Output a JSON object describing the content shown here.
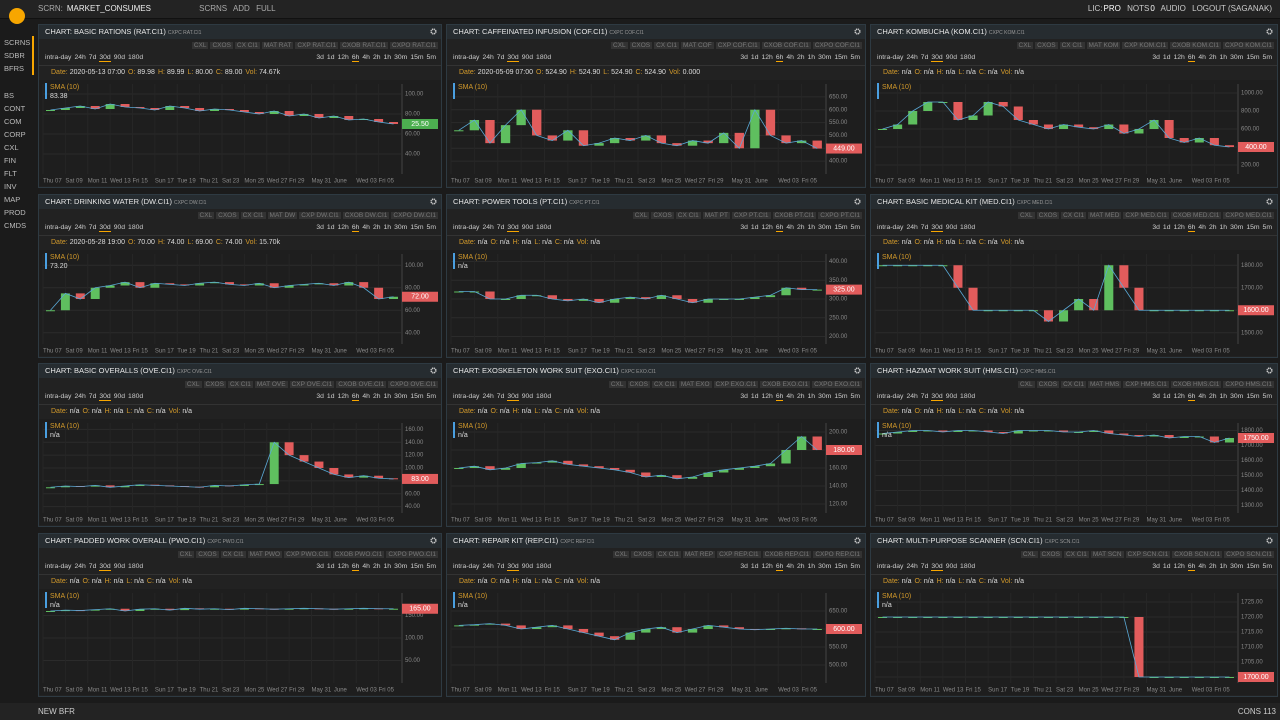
{
  "topbar": {
    "screen_label": "SCRN:",
    "screen_name": "MARKET_CONSUMES",
    "buttons": [
      "SCRNS",
      "ADD",
      "FULL"
    ],
    "lic_label": "LIC:",
    "lic": "PRO",
    "nots_label": "NOTS",
    "nots": "0",
    "audio": "AUDIO",
    "logout": "LOGOUT (SAGANAK)"
  },
  "sidebar": {
    "top": [
      "SCRNS",
      "SDBR",
      "BFRS"
    ],
    "items": [
      "BS",
      "CONT",
      "COM",
      "CORP",
      "CXL",
      "FIN",
      "FLT",
      "INV",
      "MAP",
      "PROD",
      "CMDS"
    ]
  },
  "bottombar": {
    "left": "NEW BFR",
    "right": "CONS 113"
  },
  "ranges_left": [
    "intra-day",
    "24h",
    "7d",
    "30d",
    "90d",
    "180d"
  ],
  "ranges_right": [
    "3d",
    "1d",
    "12h",
    "6h",
    "4h",
    "2h",
    "1h",
    "30m",
    "15m",
    "5m"
  ],
  "info_labels": [
    "Date:",
    "O:",
    "H:",
    "L:",
    "C:",
    "Vol:"
  ],
  "sma_label": "SMA (10)",
  "xticks": [
    "Thu 07",
    "Sat 09",
    "Mon 11",
    "Wed 13",
    "Fri 15",
    "Sun 17",
    "Tue 19",
    "Thu 21",
    "Sat 23",
    "Mon 25",
    "Wed 27",
    "Fri 29",
    "May 31",
    "June",
    "Wed 03",
    "Fri 05"
  ],
  "candle_colors": {
    "up": "#5fbf5f",
    "down": "#e25c5c"
  },
  "panels": [
    {
      "title": "CHART: BASIC RATIONS (RAT.CI1)",
      "code": "CXPC RAT.CI1",
      "tabs": [
        "CXL",
        "CXOS",
        "CX CI1",
        "MAT RAT",
        "CXP RAT.CI1",
        "CXOB RAT.CI1",
        "CXPO RAT.CI1"
      ],
      "info": [
        "2020-05-13 07:00",
        "89.98",
        "89.99",
        "80.00",
        "89.00",
        "74.67k"
      ],
      "sma_value": "83.38",
      "price": "25.50",
      "price_color": "#4caf50",
      "ylim": [
        20,
        110
      ],
      "yticks": [
        {
          "value": 40,
          "label": "40.00"
        },
        {
          "value": 60,
          "label": "60.00"
        },
        {
          "value": 80,
          "label": "80.00"
        },
        {
          "value": 100,
          "label": "100.00"
        }
      ],
      "closes": [
        84,
        86,
        88,
        85,
        90,
        87,
        86,
        84,
        88,
        86,
        83,
        85,
        84,
        82,
        80,
        83,
        78,
        80,
        76,
        78,
        74,
        75,
        72,
        70
      ]
    },
    {
      "title": "CHART: CAFFEINATED INFUSION (COF.CI1)",
      "code": "CXPC COF.CI1",
      "tabs": [
        "CXL",
        "CXOS",
        "CX CI1",
        "MAT COF",
        "CXP COF.CI1",
        "CXOB COF.CI1",
        "CXPO COF.CI1"
      ],
      "info": [
        "2020-05-09 07:00",
        "524.90",
        "524.90",
        "524.90",
        "524.90",
        "0.000"
      ],
      "price": "449.00",
      "price_color": "#e25c5c",
      "ylim": [
        350,
        700
      ],
      "yticks": [
        {
          "value": 400,
          "label": "400.00"
        },
        {
          "value": 450,
          "label": "450.00"
        },
        {
          "value": 500,
          "label": "500.00"
        },
        {
          "value": 550,
          "label": "550.00"
        },
        {
          "value": 600,
          "label": "600.00"
        },
        {
          "value": 650,
          "label": "650.00"
        }
      ],
      "closes": [
        520,
        560,
        470,
        540,
        600,
        500,
        480,
        520,
        460,
        470,
        490,
        480,
        500,
        470,
        460,
        480,
        470,
        510,
        450,
        600,
        500,
        470,
        480,
        449
      ]
    },
    {
      "title": "CHART: KOMBUCHA (KOM.CI1)",
      "code": "CXPC KOM.CI1",
      "tabs": [
        "CXL",
        "CXOS",
        "CX CI1",
        "MAT KOM",
        "CXP KOM.CI1",
        "CXOB KOM.CI1",
        "CXPO KOM.CI1"
      ],
      "info": [
        "n/a",
        "n/a",
        "n/a",
        "n/a",
        "n/a",
        "n/a"
      ],
      "price": "400.00",
      "price_color": "#e25c5c",
      "ylim": [
        100,
        1100
      ],
      "yticks": [
        {
          "value": 200,
          "label": "200.00"
        },
        {
          "value": 400,
          "label": "400.00"
        },
        {
          "value": 600,
          "label": "600.00"
        },
        {
          "value": 800,
          "label": "800.00"
        },
        {
          "value": 1000,
          "label": "1000.00"
        }
      ],
      "closes": [
        600,
        650,
        800,
        900,
        900,
        700,
        750,
        900,
        850,
        700,
        650,
        600,
        650,
        620,
        600,
        650,
        550,
        600,
        700,
        500,
        450,
        500,
        420,
        400
      ]
    },
    {
      "title": "CHART: DRINKING WATER (DW.CI1)",
      "code": "CXPC DW.CI1",
      "tabs": [
        "CXL",
        "CXOS",
        "CX CI1",
        "MAT DW",
        "CXP DW.CI1",
        "CXOB DW.CI1",
        "CXPO DW.CI1"
      ],
      "info": [
        "2020-05-28 19:00",
        "70.00",
        "74.00",
        "69.00",
        "74.00",
        "15.70k"
      ],
      "sma_value": "73.20",
      "price": "72.00",
      "price_color": "#e25c5c",
      "ylim": [
        30,
        110
      ],
      "yticks": [
        {
          "value": 40,
          "label": "40.00"
        },
        {
          "value": 60,
          "label": "60.00"
        },
        {
          "value": 80,
          "label": "80.00"
        },
        {
          "value": 100,
          "label": "100.00"
        }
      ],
      "closes": [
        60,
        75,
        70,
        80,
        82,
        85,
        80,
        84,
        83,
        82,
        84,
        85,
        83,
        82,
        84,
        80,
        82,
        83,
        84,
        82,
        85,
        80,
        70,
        72
      ]
    },
    {
      "title": "CHART: POWER TOOLS (PT.CI1)",
      "code": "CXPC PT.CI1",
      "tabs": [
        "CXL",
        "CXOS",
        "CX CI1",
        "MAT PT",
        "CXP PT.CI1",
        "CXOB PT.CI1",
        "CXPO PT.CI1"
      ],
      "info": [
        "n/a",
        "n/a",
        "n/a",
        "n/a",
        "n/a",
        "n/a"
      ],
      "sma_value": "n/a",
      "price": "325.00",
      "price_color": "#e25c5c",
      "ylim": [
        180,
        420
      ],
      "yticks": [
        {
          "value": 200,
          "label": "200.00"
        },
        {
          "value": 250,
          "label": "250.00"
        },
        {
          "value": 300,
          "label": "300.00"
        },
        {
          "value": 350,
          "label": "350.00"
        },
        {
          "value": 400,
          "label": "400.00"
        }
      ],
      "closes": [
        320,
        320,
        300,
        300,
        310,
        310,
        300,
        295,
        300,
        290,
        300,
        305,
        300,
        310,
        300,
        290,
        300,
        300,
        300,
        305,
        310,
        330,
        325,
        325
      ]
    },
    {
      "title": "CHART: BASIC MEDICAL KIT (MED.CI1)",
      "code": "CXPC MED.CI1",
      "tabs": [
        "CXL",
        "CXOS",
        "CX CI1",
        "MAT MED",
        "CXP MED.CI1",
        "CXOB MED.CI1",
        "CXPO MED.CI1"
      ],
      "info": [
        "n/a",
        "n/a",
        "n/a",
        "n/a",
        "n/a",
        "n/a"
      ],
      "price": "1600.00",
      "price_color": "#e25c5c",
      "ylim": [
        1450,
        1850
      ],
      "yticks": [
        {
          "value": 1500,
          "label": "1500.00"
        },
        {
          "value": 1600,
          "label": "1600.00"
        },
        {
          "value": 1700,
          "label": "1700.00"
        },
        {
          "value": 1800,
          "label": "1800.00"
        }
      ],
      "closes": [
        1800,
        1800,
        1800,
        1800,
        1800,
        1700,
        1600,
        1600,
        1600,
        1600,
        1600,
        1550,
        1600,
        1650,
        1600,
        1800,
        1700,
        1600,
        1600,
        1600,
        1600,
        1600,
        1600,
        1600
      ]
    },
    {
      "title": "CHART: BASIC OVERALLS (OVE.CI1)",
      "code": "CXPC OVE.CI1",
      "tabs": [
        "CXL",
        "CXOS",
        "CX CI1",
        "MAT OVE",
        "CXP OVE.CI1",
        "CXOB OVE.CI1",
        "CXPO OVE.CI1"
      ],
      "info": [
        "n/a",
        "n/a",
        "n/a",
        "n/a",
        "n/a",
        "n/a"
      ],
      "sma_value": "n/a",
      "price": "83.00",
      "price_color": "#e25c5c",
      "ylim": [
        30,
        170
      ],
      "yticks": [
        {
          "value": 40,
          "label": "40.00"
        },
        {
          "value": 60,
          "label": "60.00"
        },
        {
          "value": 80,
          "label": "80.00"
        },
        {
          "value": 100,
          "label": "100.00"
        },
        {
          "value": 120,
          "label": "120.00"
        },
        {
          "value": 140,
          "label": "140.00"
        },
        {
          "value": 160,
          "label": "160.00"
        }
      ],
      "closes": [
        70,
        72,
        71,
        73,
        70,
        72,
        74,
        73,
        72,
        71,
        70,
        73,
        72,
        74,
        75,
        140,
        120,
        110,
        100,
        90,
        85,
        88,
        84,
        83
      ]
    },
    {
      "title": "CHART: EXOSKELETON WORK SUIT (EXO.CI1)",
      "code": "CXPC EXO.CI1",
      "tabs": [
        "CXL",
        "CXOS",
        "CX CI1",
        "MAT EXO",
        "CXP EXO.CI1",
        "CXOB EXO.CI1",
        "CXPO EXO.CI1"
      ],
      "info": [
        "n/a",
        "n/a",
        "n/a",
        "n/a",
        "n/a",
        "n/a"
      ],
      "sma_value": "n/a",
      "price": "180.00",
      "price_color": "#e25c5c",
      "ylim": [
        110,
        210
      ],
      "yticks": [
        {
          "value": 120,
          "label": "120.00"
        },
        {
          "value": 140,
          "label": "140.00"
        },
        {
          "value": 160,
          "label": "160.00"
        },
        {
          "value": 180,
          "label": "180.00"
        },
        {
          "value": 200,
          "label": "200.00"
        }
      ],
      "closes": [
        160,
        162,
        158,
        160,
        165,
        166,
        168,
        164,
        162,
        160,
        158,
        155,
        150,
        152,
        148,
        150,
        155,
        158,
        160,
        162,
        165,
        180,
        195,
        180
      ]
    },
    {
      "title": "CHART: HAZMAT WORK SUIT (HMS.CI1)",
      "code": "CXPC HMS.CI1",
      "tabs": [
        "CXL",
        "CXOS",
        "CX CI1",
        "MAT HMS",
        "CXP HMS.CI1",
        "CXOB HMS.CI1",
        "CXPO HMS.CI1"
      ],
      "info": [
        "n/a",
        "n/a",
        "n/a",
        "n/a",
        "n/a",
        "n/a"
      ],
      "sma_value": "n/a",
      "price": "1750.00",
      "price_color": "#e25c5c",
      "ylim": [
        1250,
        1850
      ],
      "yticks": [
        {
          "value": 1300,
          "label": "1300.00"
        },
        {
          "value": 1400,
          "label": "1400.00"
        },
        {
          "value": 1500,
          "label": "1500.00"
        },
        {
          "value": 1600,
          "label": "1600.00"
        },
        {
          "value": 1700,
          "label": "1700.00"
        },
        {
          "value": 1800,
          "label": "1800.00"
        }
      ],
      "closes": [
        1780,
        1790,
        1800,
        1800,
        1790,
        1800,
        1800,
        1790,
        1780,
        1800,
        1800,
        1800,
        1790,
        1790,
        1800,
        1780,
        1770,
        1760,
        1770,
        1750,
        1760,
        1760,
        1720,
        1750
      ]
    },
    {
      "title": "CHART: PADDED WORK OVERALL (PWO.CI1)",
      "code": "CXPC PWO.CI1",
      "tabs": [
        "CXL",
        "CXOS",
        "CX CI1",
        "MAT PWO",
        "CXP PWO.CI1",
        "CXOB PWO.CI1",
        "CXPO PWO.CI1"
      ],
      "info": [
        "n/a",
        "n/a",
        "n/a",
        "n/a",
        "n/a",
        "n/a"
      ],
      "sma_value": "n/a",
      "price": "165.00",
      "price_color": "#e25c5c",
      "ylim": [
        0,
        200
      ],
      "yticks": [
        {
          "value": 50,
          "label": "50.00"
        },
        {
          "value": 100,
          "label": "100.00"
        },
        {
          "value": 150,
          "label": "150.00"
        }
      ],
      "closes": [
        160,
        162,
        161,
        163,
        165,
        160,
        164,
        165,
        162,
        166,
        164,
        165,
        163,
        166,
        165,
        164,
        165,
        166,
        165,
        164,
        165,
        166,
        165,
        165
      ]
    },
    {
      "title": "CHART: REPAIR KIT (REP.CI1)",
      "code": "CXPC REP.CI1",
      "tabs": [
        "CXL",
        "CXOS",
        "CX CI1",
        "MAT REP",
        "CXP REP.CI1",
        "CXOB REP.CI1",
        "CXPO REP.CI1"
      ],
      "info": [
        "n/a",
        "n/a",
        "n/a",
        "n/a",
        "n/a",
        "n/a"
      ],
      "sma_value": "n/a",
      "price": "600.00",
      "price_color": "#e25c5c",
      "ylim": [
        450,
        700
      ],
      "yticks": [
        {
          "value": 500,
          "label": "500.00"
        },
        {
          "value": 550,
          "label": "550.00"
        },
        {
          "value": 600,
          "label": "600.00"
        },
        {
          "value": 650,
          "label": "650.00"
        }
      ],
      "closes": [
        610,
        612,
        615,
        610,
        600,
        605,
        610,
        600,
        590,
        580,
        570,
        590,
        600,
        605,
        590,
        600,
        610,
        605,
        600,
        598,
        600,
        602,
        600,
        600
      ]
    },
    {
      "title": "CHART: MULTI-PURPOSE SCANNER (SCN.CI1)",
      "code": "CXPC SCN.CI1",
      "tabs": [
        "CXL",
        "CXOS",
        "CX CI1",
        "MAT SCN",
        "CXP SCN.CI1",
        "CXOB SCN.CI1",
        "CXPO SCN.CI1"
      ],
      "info": [
        "n/a",
        "n/a",
        "n/a",
        "n/a",
        "n/a",
        "n/a"
      ],
      "sma_value": "n/a",
      "price": "1700.00",
      "price_color": "#e25c5c",
      "ylim": [
        1698,
        1728
      ],
      "yticks": [
        {
          "value": 1700,
          "label": "1700.00"
        },
        {
          "value": 1705,
          "label": "1705.00"
        },
        {
          "value": 1710,
          "label": "1710.00"
        },
        {
          "value": 1715,
          "label": "1715.00"
        },
        {
          "value": 1720,
          "label": "1720.00"
        },
        {
          "value": 1725,
          "label": "1725.00"
        }
      ],
      "closes": [
        1720,
        1720,
        1720,
        1720,
        1720,
        1720,
        1720,
        1720,
        1720,
        1720,
        1720,
        1720,
        1720,
        1720,
        1720,
        1720,
        1720,
        1700,
        1700,
        1700,
        1700,
        1700,
        1700,
        1700
      ]
    }
  ]
}
